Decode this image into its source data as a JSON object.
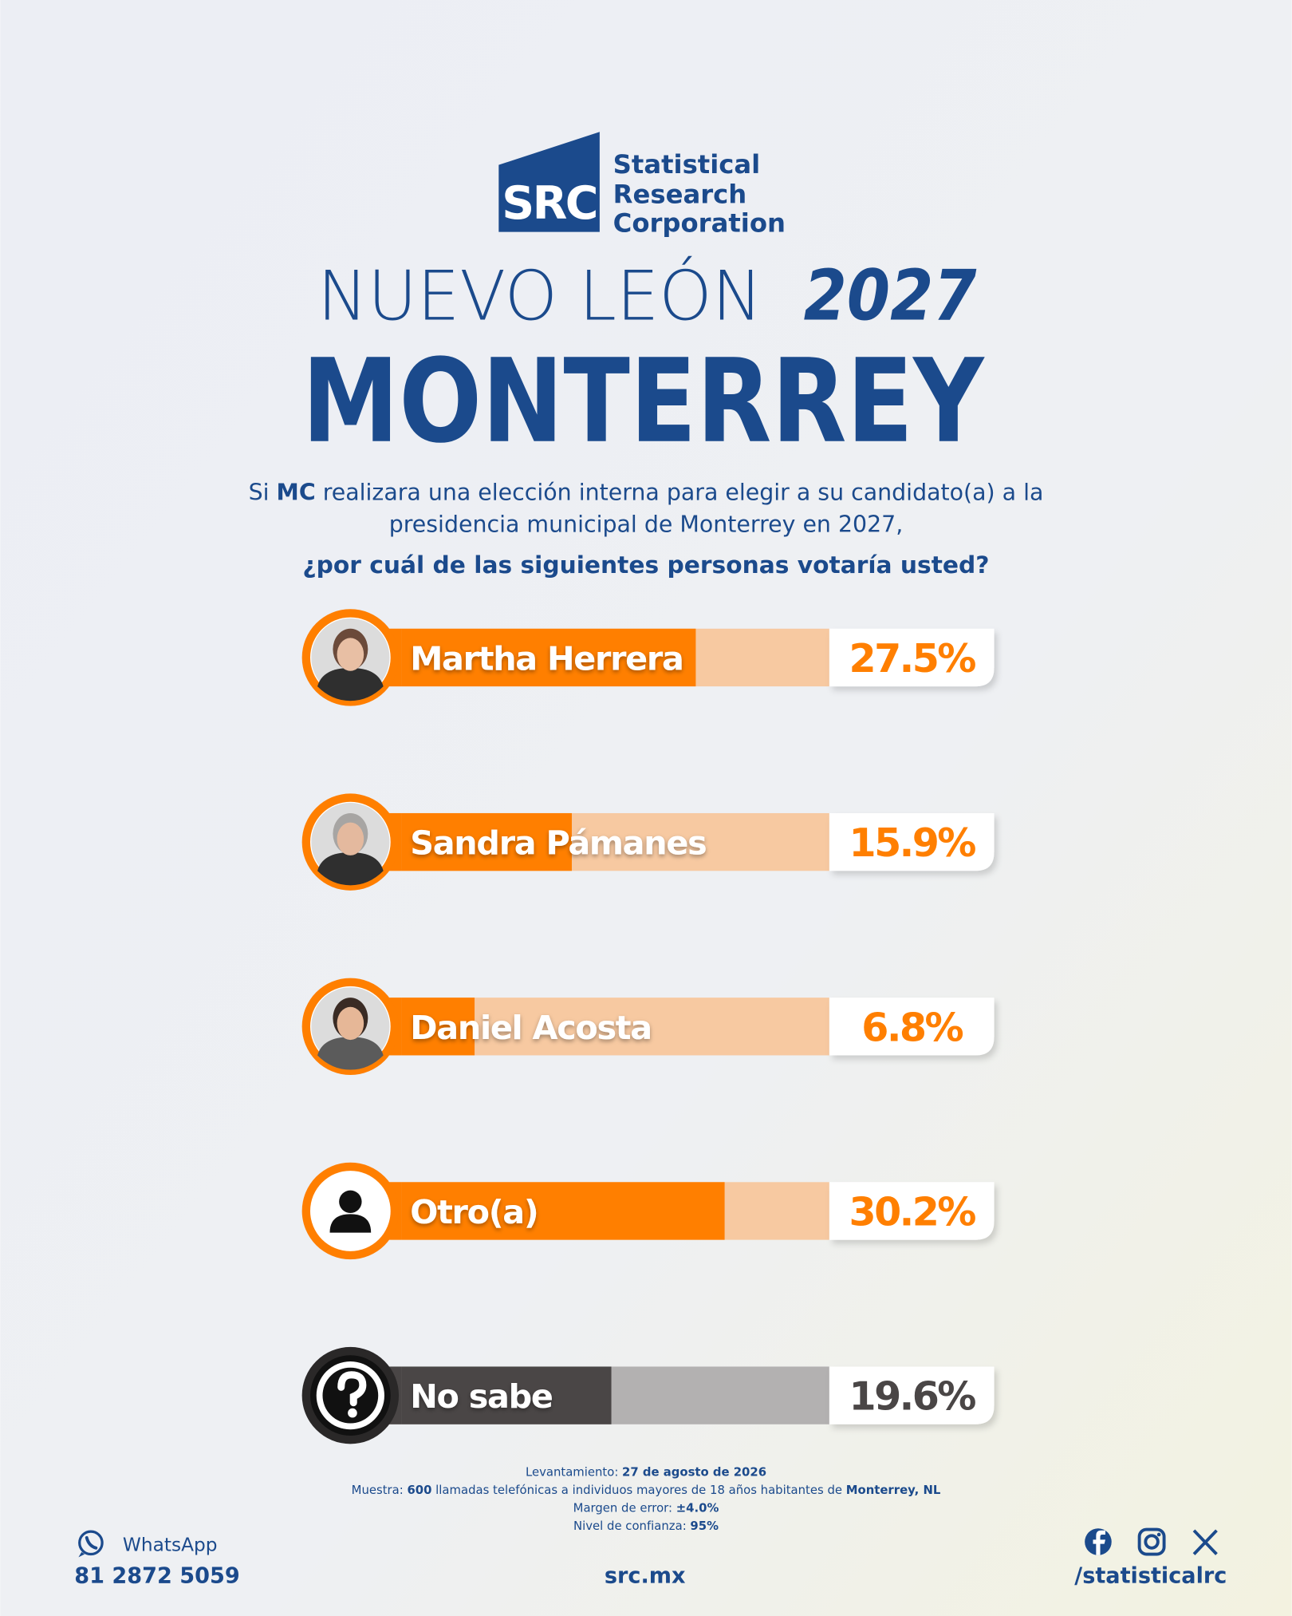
{
  "header": {
    "logo_mark": "SRC",
    "logo_lines": [
      "Statistical",
      "Research",
      "Corporation"
    ],
    "region": "NUEVO LEÓN",
    "year": "2027",
    "city": "MONTERREY"
  },
  "question": {
    "line1_start": "Si ",
    "line1_bold": "MC",
    "line1_end": " realizara una elección interna para elegir a su candidato(a) a la",
    "line2": "presidencia municipal de Monterrey en 2027,",
    "line3": "¿por cuál de las siguientes personas votaría usted?"
  },
  "chart_data": {
    "type": "bar",
    "orientation": "horizontal",
    "categories": [
      "Martha Herrera",
      "Sandra Pámanes",
      "Daniel Acosta",
      "Otro(a)",
      "No sabe"
    ],
    "values": [
      27.5,
      15.9,
      6.8,
      30.2,
      19.6
    ],
    "value_labels": [
      "27.5%",
      "15.9%",
      "6.8%",
      "30.2%",
      "19.6%"
    ],
    "colors": [
      "#ff7f00",
      "#ff7f00",
      "#ff7f00",
      "#ff7f00",
      "#4a4646"
    ],
    "xlim": [
      0,
      40
    ]
  },
  "footer": {
    "notes": [
      [
        "Levantamiento: ",
        "27 de agosto de 2026"
      ],
      [
        "Muestra: ",
        "600",
        " llamadas telefónicas a individuos mayores de 18 años habitantes de ",
        "Monterrey, NL"
      ],
      [
        "Margen de error: ",
        "±4.0%"
      ],
      [
        "Nivel de confianza: ",
        "95%"
      ]
    ],
    "whatsapp_label": "WhatsApp",
    "phone": "81 2872 5059",
    "website": "src.mx",
    "social_handle": "/statisticalrc"
  }
}
